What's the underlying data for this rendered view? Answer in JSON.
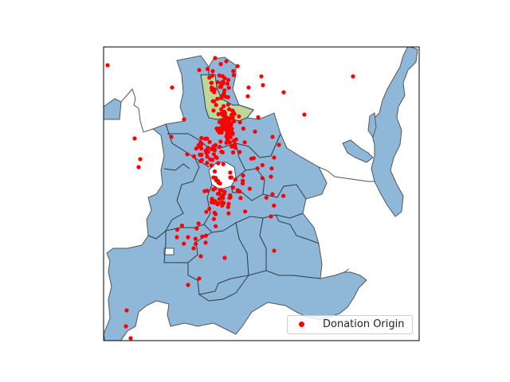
{
  "map": {
    "legend_label": "Donation Origin",
    "colors": {
      "district_fill": "#8fb8d8",
      "district_stroke": "#2b3a48",
      "highlight_fill": "#bdd79a",
      "outline_stroke": "#555555",
      "point_color": "#ff0000",
      "axes_frame": "#000000"
    }
  }
}
